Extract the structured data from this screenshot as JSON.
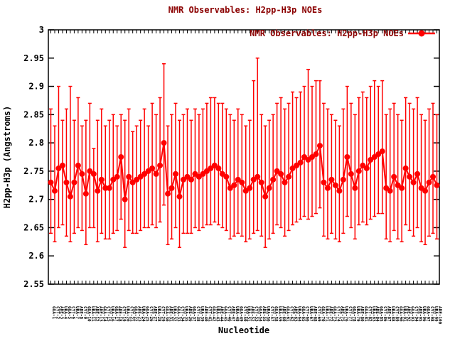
{
  "colors": {
    "series": "#ff0000",
    "title_text": "#8b0000",
    "axis": "#000000",
    "background": "#ffffff"
  },
  "chart_data": {
    "type": "line",
    "style": "linespoints-with-error-bars",
    "title": "NMR Observables: H2pp-H3p NOEs",
    "xlabel": "Nucleotide",
    "ylabel": "H2pp-H3p (Angstroms)",
    "ylim": [
      2.55,
      3.0
    ],
    "grid": "off",
    "legend": {
      "label": "NMR Observables: H2pp-H3p NOEs",
      "position": "top-right",
      "marker": "red-filled-circle-on-line"
    },
    "ytick_values": [
      2.55,
      2.6,
      2.65,
      2.7,
      2.75,
      2.8,
      2.85,
      2.9,
      2.95,
      3.0
    ],
    "ytick_labels": [
      "2.55",
      "2.6",
      "2.65",
      "2.7",
      "2.75",
      "2.8",
      "2.85",
      "2.9",
      "2.95",
      "3"
    ],
    "categories": [
      "GUA-1",
      "CYT-2",
      "ADE-3",
      "URA-4",
      "GUA-5",
      "CYT-6",
      "URA-7",
      "ADE-8",
      "CYT-9",
      "GUA-10",
      "URA-11",
      "ADE-12",
      "ADE-13",
      "GUA-14",
      "CYT-15",
      "URA-16",
      "GUA-17",
      "ADE-18",
      "CYT-19",
      "URA-20",
      "CYT-21",
      "GUA-22",
      "ADE-23",
      "URA-24",
      "GUA-25",
      "CYT-26",
      "ADE-27",
      "URA-28",
      "CYT-29",
      "GUA-30",
      "ADE-31",
      "URA-32",
      "GUA-33",
      "CYT-34",
      "URA-35",
      "ADE-36",
      "GUA-37",
      "CYT-38",
      "URA-39",
      "ADE-40",
      "CYT-41",
      "GUA-42",
      "URA-43",
      "ADE-44",
      "GUA-45",
      "CYT-46",
      "ADE-47",
      "URA-48",
      "GUA-49",
      "CYT-50",
      "URA-51",
      "ADE-52",
      "CYT-53",
      "GUA-54",
      "ADE-55",
      "URA-56",
      "CYT-57",
      "GUA-58",
      "URA-59",
      "ADE-60",
      "GUA-61",
      "CYT-62",
      "ADE-63",
      "URA-64",
      "GUA-65",
      "CYT-66",
      "URA-67",
      "ADE-68",
      "CYT-69",
      "GUA-70",
      "URA-71",
      "ADE-72",
      "GUA-73",
      "CYT-74",
      "ADE-75",
      "URA-76",
      "CYT-77",
      "GUA-78",
      "URA-79",
      "ADE-80",
      "GUA-81",
      "CYT-82",
      "URA-83",
      "ADE-84",
      "GUA-85",
      "CYT-86",
      "ADE-87",
      "URA-88",
      "CYT-89",
      "GUA-90",
      "URA-91",
      "ADE-92",
      "GUA-93",
      "CYT-94",
      "ADE-95",
      "URA-96",
      "GUA-97",
      "CYT-98",
      "URA-99",
      "ADE-100"
    ],
    "values": [
      2.73,
      2.715,
      2.755,
      2.76,
      2.73,
      2.705,
      2.73,
      2.76,
      2.745,
      2.71,
      2.75,
      2.745,
      2.715,
      2.735,
      2.72,
      2.72,
      2.735,
      2.74,
      2.775,
      2.7,
      2.74,
      2.73,
      2.735,
      2.74,
      2.745,
      2.75,
      2.755,
      2.745,
      2.76,
      2.8,
      2.71,
      2.72,
      2.745,
      2.705,
      2.735,
      2.74,
      2.735,
      2.745,
      2.74,
      2.745,
      2.75,
      2.755,
      2.76,
      2.755,
      2.745,
      2.74,
      2.72,
      2.725,
      2.735,
      2.73,
      2.715,
      2.72,
      2.735,
      2.74,
      2.73,
      2.705,
      2.72,
      2.735,
      2.75,
      2.745,
      2.73,
      2.74,
      2.755,
      2.76,
      2.765,
      2.775,
      2.77,
      2.775,
      2.78,
      2.795,
      2.73,
      2.72,
      2.735,
      2.725,
      2.715,
      2.735,
      2.775,
      2.745,
      2.72,
      2.75,
      2.76,
      2.755,
      2.77,
      2.775,
      2.78,
      2.785,
      2.72,
      2.715,
      2.74,
      2.725,
      2.72,
      2.755,
      2.74,
      2.73,
      2.745,
      2.72,
      2.715,
      2.73,
      2.74,
      2.725
    ],
    "err_hi": [
      2.86,
      2.83,
      2.9,
      2.84,
      2.86,
      2.9,
      2.84,
      2.88,
      2.83,
      2.84,
      2.87,
      2.79,
      2.84,
      2.86,
      2.83,
      2.84,
      2.85,
      2.83,
      2.85,
      2.84,
      2.86,
      2.82,
      2.83,
      2.84,
      2.86,
      2.83,
      2.87,
      2.85,
      2.88,
      2.94,
      2.83,
      2.85,
      2.87,
      2.84,
      2.85,
      2.86,
      2.84,
      2.86,
      2.85,
      2.86,
      2.87,
      2.88,
      2.88,
      2.87,
      2.87,
      2.86,
      2.85,
      2.84,
      2.86,
      2.85,
      2.83,
      2.84,
      2.91,
      2.95,
      2.85,
      2.83,
      2.84,
      2.85,
      2.87,
      2.88,
      2.86,
      2.87,
      2.89,
      2.88,
      2.89,
      2.9,
      2.93,
      2.9,
      2.91,
      2.91,
      2.87,
      2.86,
      2.85,
      2.84,
      2.83,
      2.86,
      2.9,
      2.87,
      2.85,
      2.88,
      2.89,
      2.88,
      2.9,
      2.91,
      2.9,
      2.91,
      2.85,
      2.86,
      2.87,
      2.85,
      2.84,
      2.88,
      2.87,
      2.86,
      2.88,
      2.85,
      2.84,
      2.86,
      2.87,
      2.85
    ],
    "err_lo": [
      2.64,
      2.625,
      2.65,
      2.655,
      2.635,
      2.625,
      2.64,
      2.65,
      2.645,
      2.62,
      2.65,
      2.65,
      2.625,
      2.64,
      2.63,
      2.63,
      2.64,
      2.645,
      2.665,
      2.615,
      2.645,
      2.64,
      2.64,
      2.645,
      2.65,
      2.65,
      2.655,
      2.65,
      2.66,
      2.69,
      2.62,
      2.63,
      2.65,
      2.615,
      2.64,
      2.64,
      2.64,
      2.65,
      2.645,
      2.65,
      2.655,
      2.655,
      2.66,
      2.655,
      2.65,
      2.645,
      2.63,
      2.635,
      2.64,
      2.635,
      2.625,
      2.63,
      2.64,
      2.645,
      2.635,
      2.615,
      2.63,
      2.64,
      2.655,
      2.65,
      2.635,
      2.645,
      2.655,
      2.66,
      2.665,
      2.67,
      2.665,
      2.67,
      2.675,
      2.685,
      2.635,
      2.63,
      2.64,
      2.63,
      2.625,
      2.64,
      2.67,
      2.65,
      2.63,
      2.655,
      2.66,
      2.655,
      2.665,
      2.67,
      2.675,
      2.675,
      2.63,
      2.625,
      2.645,
      2.63,
      2.625,
      2.655,
      2.645,
      2.635,
      2.65,
      2.625,
      2.62,
      2.635,
      2.64,
      2.63
    ]
  }
}
